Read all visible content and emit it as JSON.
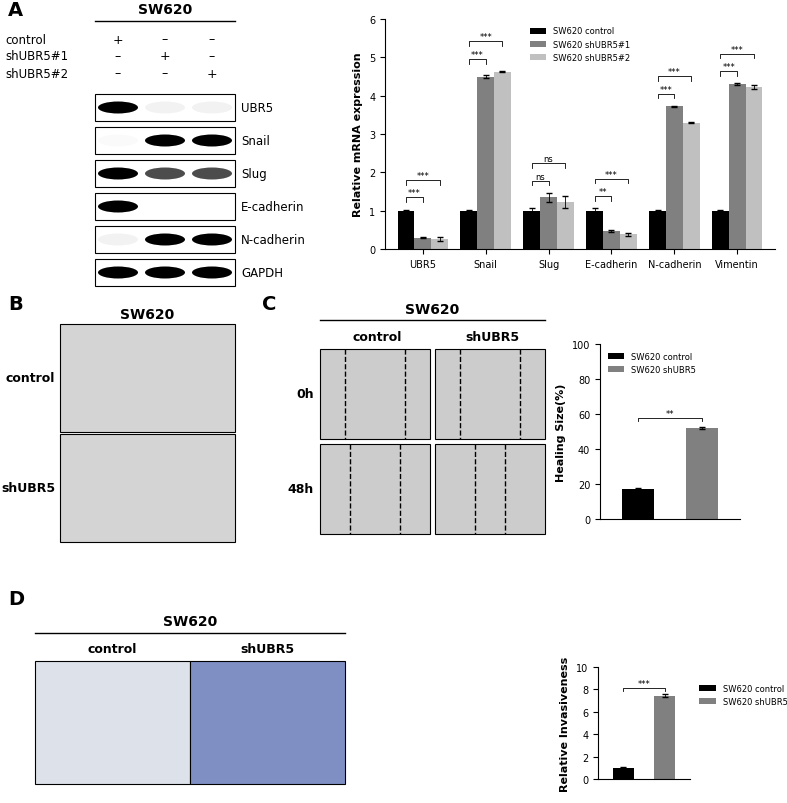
{
  "panel_labels": [
    "A",
    "B",
    "C",
    "D"
  ],
  "blot": {
    "title": "SW620",
    "conditions": [
      {
        "name": "control",
        "marks": [
          "+",
          "–",
          "–"
        ]
      },
      {
        "name": "shUBR5#1",
        "marks": [
          "–",
          "+",
          "–"
        ]
      },
      {
        "name": "shUBR5#2",
        "marks": [
          "–",
          "–",
          "+"
        ]
      }
    ],
    "bands": [
      {
        "name": "UBR5",
        "intensity": [
          1.0,
          0.05,
          0.05
        ]
      },
      {
        "name": "Snail",
        "intensity": [
          0.02,
          1.0,
          1.0
        ]
      },
      {
        "name": "Slug",
        "intensity": [
          1.0,
          0.7,
          0.7
        ]
      },
      {
        "name": "E-cadherin",
        "intensity": [
          1.0,
          0.0,
          0.0
        ]
      },
      {
        "name": "N-cadherin",
        "intensity": [
          0.05,
          1.0,
          1.0
        ]
      },
      {
        "name": "GAPDH",
        "intensity": [
          1.0,
          1.0,
          1.0
        ]
      }
    ]
  },
  "panel_B": {
    "title": "SW620",
    "rows": [
      "control",
      "shUBR5"
    ]
  },
  "panel_C": {
    "title": "SW620",
    "columns": [
      "control",
      "shUBR5"
    ],
    "rows": [
      "0h",
      "48h"
    ]
  },
  "panel_D": {
    "title": "SW620",
    "columns": [
      "control",
      "shUBR5"
    ]
  },
  "chart_data": [
    {
      "type": "bar",
      "y_label": "Relative mRNA expression",
      "categories": [
        "UBR5",
        "Snail",
        "Slug",
        "E-cadherin",
        "N-cadherin",
        "Vimentin"
      ],
      "series": [
        {
          "name": "SW620 control",
          "color": "#000000",
          "values": [
            1,
            1,
            1,
            1,
            1,
            1
          ],
          "errors": [
            0.03,
            0.03,
            0.06,
            0.06,
            0.03,
            0.02
          ]
        },
        {
          "name": "SW620 shUBR5#1",
          "color": "#808080",
          "values": [
            0.3,
            4.5,
            1.35,
            0.47,
            3.72,
            4.3
          ],
          "errors": [
            0.02,
            0.03,
            0.12,
            0.03,
            0.02,
            0.02
          ]
        },
        {
          "name": "SW620 shUBR5#2",
          "color": "#c0c0c0",
          "values": [
            0.27,
            4.63,
            1.22,
            0.38,
            3.3,
            4.22
          ],
          "errors": [
            0.05,
            0.02,
            0.15,
            0.04,
            0.02,
            0.05
          ]
        }
      ],
      "ylim": [
        0,
        6
      ],
      "yticks": [
        0,
        1,
        2,
        3,
        4,
        5,
        6
      ],
      "legend": "upper center",
      "annotations": [
        {
          "category": "UBR5",
          "pair": [
            "SW620 control",
            "SW620 shUBR5#1"
          ],
          "label": "***"
        },
        {
          "category": "UBR5",
          "pair": [
            "SW620 control",
            "SW620 shUBR5#2"
          ],
          "label": "***"
        },
        {
          "category": "Snail",
          "pair": [
            "SW620 control",
            "SW620 shUBR5#1"
          ],
          "label": "***"
        },
        {
          "category": "Snail",
          "pair": [
            "SW620 control",
            "SW620 shUBR5#2"
          ],
          "label": "***"
        },
        {
          "category": "Slug",
          "pair": [
            "SW620 control",
            "SW620 shUBR5#1"
          ],
          "label": "ns"
        },
        {
          "category": "Slug",
          "pair": [
            "SW620 control",
            "SW620 shUBR5#2"
          ],
          "label": "ns"
        },
        {
          "category": "E-cadherin",
          "pair": [
            "SW620 control",
            "SW620 shUBR5#1"
          ],
          "label": "**"
        },
        {
          "category": "E-cadherin",
          "pair": [
            "SW620 control",
            "SW620 shUBR5#2"
          ],
          "label": "***"
        },
        {
          "category": "N-cadherin",
          "pair": [
            "SW620 control",
            "SW620 shUBR5#1"
          ],
          "label": "***"
        },
        {
          "category": "N-cadherin",
          "pair": [
            "SW620 control",
            "SW620 shUBR5#2"
          ],
          "label": "***"
        },
        {
          "category": "Vimentin",
          "pair": [
            "SW620 control",
            "SW620 shUBR5#1"
          ],
          "label": "***"
        },
        {
          "category": "Vimentin",
          "pair": [
            "SW620 control",
            "SW620 shUBR5#2"
          ],
          "label": "***"
        }
      ]
    },
    {
      "type": "bar",
      "y_label": "Healing Size(%)",
      "categories": [
        null,
        null
      ],
      "series": [
        {
          "name": "SW620 control",
          "color": "#000000",
          "values": [
            17,
            null
          ],
          "errors": [
            1,
            null
          ]
        },
        {
          "name": "SW620 shUBR5",
          "color": "#808080",
          "values": [
            null,
            52
          ],
          "errors": [
            null,
            0.6
          ]
        }
      ],
      "ylim": [
        0,
        100
      ],
      "yticks": [
        0,
        20,
        40,
        60,
        80,
        100
      ],
      "legend": "upper left",
      "tick_labels": "y",
      "annotations": [
        {
          "pair": [
            "SW620 control",
            "SW620 shUBR5"
          ],
          "label": "**"
        }
      ]
    },
    {
      "type": "bar",
      "y_label": "Relative Invasiveness",
      "categories": [
        null,
        null
      ],
      "series": [
        {
          "name": "SW620 control",
          "color": "#000000",
          "values": [
            1.0,
            null
          ],
          "errors": [
            0.05,
            null
          ]
        },
        {
          "name": "SW620 shUBR5",
          "color": "#808080",
          "values": [
            null,
            7.45
          ],
          "errors": [
            null,
            0.12
          ]
        }
      ],
      "ylim": [
        0,
        10
      ],
      "yticks": [
        0,
        2,
        4,
        6,
        8,
        10
      ],
      "legend": "right",
      "tick_labels": "y",
      "annotations": [
        {
          "pair": [
            "SW620 control",
            "SW620 shUBR5"
          ],
          "label": "***"
        }
      ]
    }
  ]
}
